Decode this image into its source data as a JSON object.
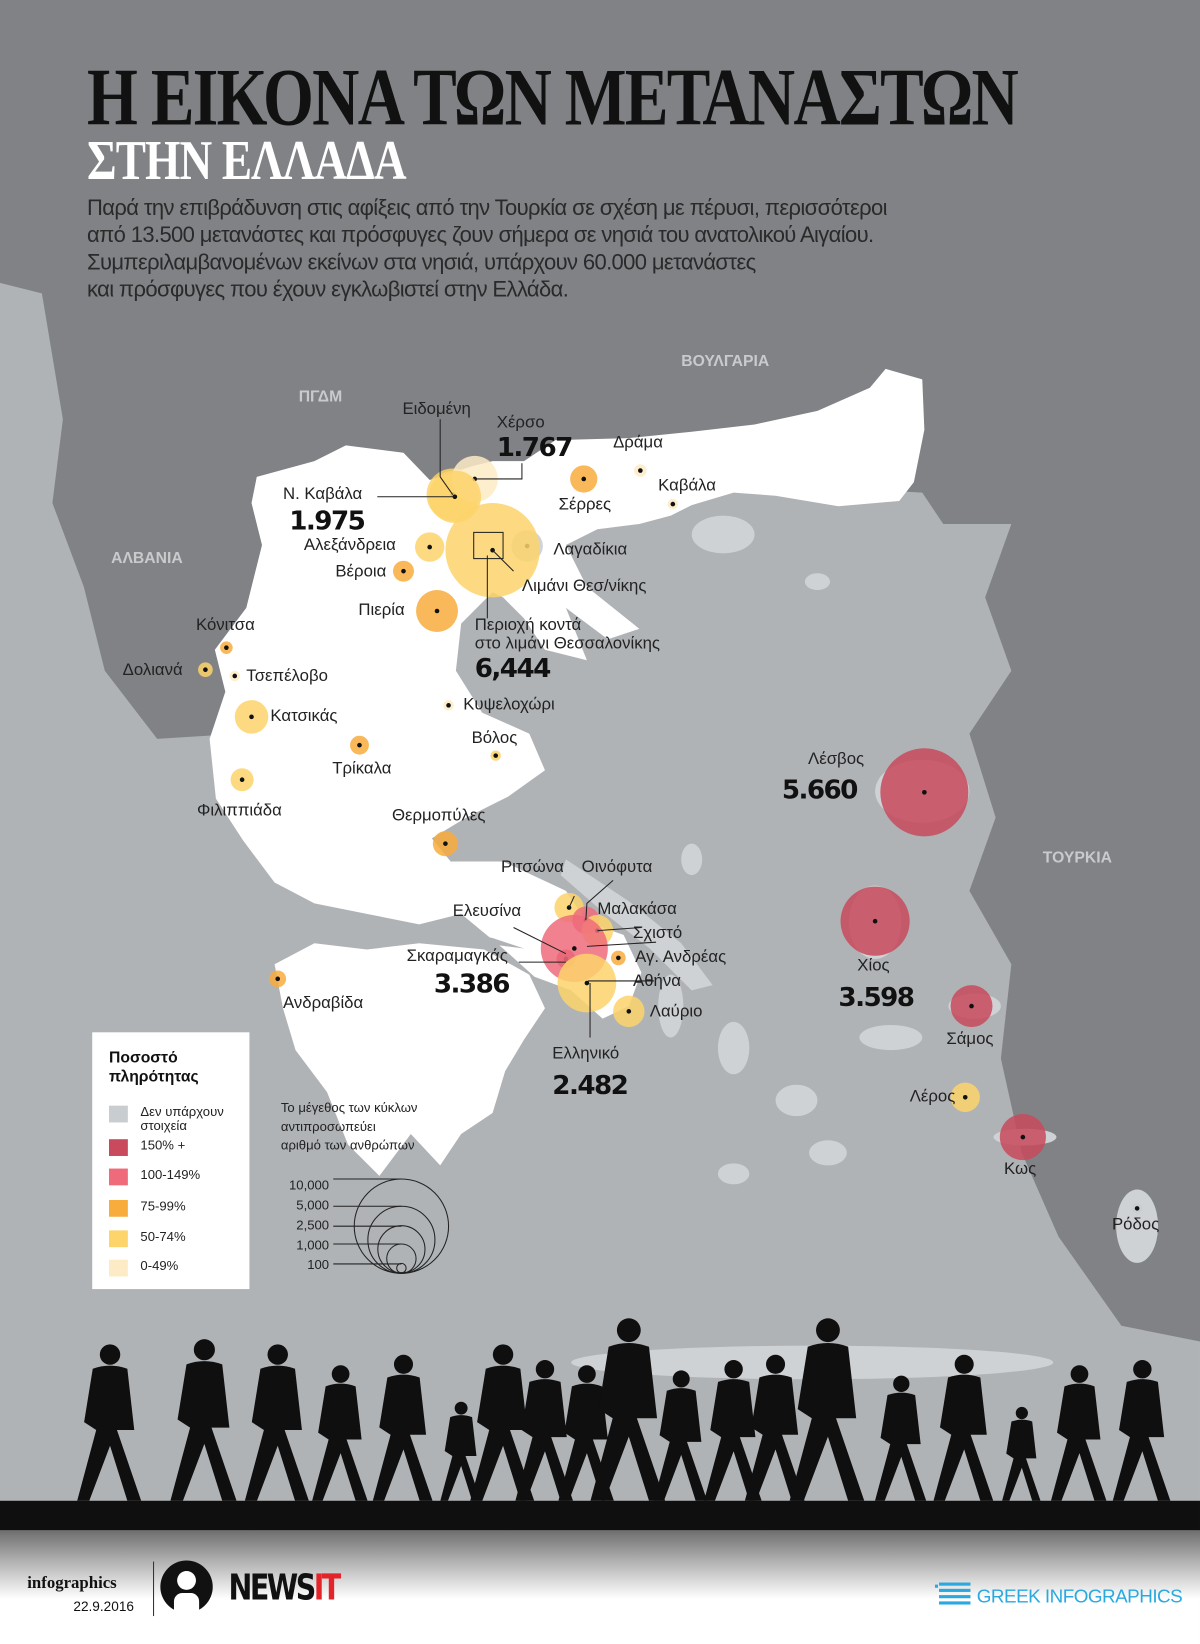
{
  "header": {
    "title": "Η ΕΙΚΟΝΑ ΤΩΝ ΜΕΤΑΝΑΣΤΩΝ",
    "subtitle": "ΣΤΗΝ ΕΛΛΑΔΑ",
    "intro_lines": [
      "Παρά την επιβράδυνση στις αφίξεις από την Τουρκία σε σχέση με πέρυσι, περισσότεροι",
      "από 13.500 μετανάστες και πρόσφυγες ζουν σήμερα σε νησιά του ανατολικού Αιγαίου.",
      "Συμπεριλαμβανομένων εκείνων στα νησιά, υπάρχουν 60.000 μετανάστες",
      "και πρόσφυγες που έχουν εγκλωβιστεί στην Ελλάδα."
    ]
  },
  "countries": [
    "ΒΟΥΛΓΑΡΙΑ",
    "ΠΓΔΜ",
    "ΑΛΒΑΝΙΑ",
    "ΤΟΥΡΚΙΑ"
  ],
  "colors": {
    "no_data": "#c9cdd0",
    "c150": "#c84a5c",
    "c100": "#ef6b7b",
    "c75": "#f8ac3c",
    "c50": "#fdd46b",
    "c0": "#fdebc6",
    "sea": "#b0b3b6",
    "neighbor_land": "#808285",
    "greece": "#ffffff"
  },
  "locations": [
    {
      "name": "Ειδομένη",
      "category": "c50"
    },
    {
      "name": "Χέρσο",
      "value": "1.767",
      "category": "c0"
    },
    {
      "name": "Ν. Καβάλα",
      "value": "1.975",
      "category": "c50"
    },
    {
      "name": "Αλεξάνδρεια",
      "category": "c50"
    },
    {
      "name": "Βέροια",
      "category": "c75"
    },
    {
      "name": "Πιερία",
      "category": "c75"
    },
    {
      "name": "Λαγαδίκια",
      "category": "no_data"
    },
    {
      "name": "Λιμάνι Θεσ/νίκης",
      "category": "c50"
    },
    {
      "name": "Περιοχή κοντά",
      "name2": "στο λιμάνι Θεσσαλονίκης",
      "value": "6,444",
      "category": "c50"
    },
    {
      "name": "Σέρρες",
      "category": "c75"
    },
    {
      "name": "Δράμα",
      "category": "c0"
    },
    {
      "name": "Καβάλα",
      "category": "c0"
    },
    {
      "name": "Κόνιτσα",
      "category": "c75"
    },
    {
      "name": "Δολιανά",
      "category": "c50"
    },
    {
      "name": "Τσεπέλοβο",
      "category": "c0"
    },
    {
      "name": "Κατσικάς",
      "category": "c50"
    },
    {
      "name": "Κυψελοχώρι",
      "category": "c0"
    },
    {
      "name": "Βόλος",
      "category": "c50"
    },
    {
      "name": "Τρίκαλα",
      "category": "c75"
    },
    {
      "name": "Φιλιππιάδα",
      "category": "c50"
    },
    {
      "name": "Θερμοπύλες",
      "category": "c75"
    },
    {
      "name": "Ριτσώνα",
      "category": "c50"
    },
    {
      "name": "Οινόφυτα",
      "category": "c100"
    },
    {
      "name": "Ελευσίνα",
      "category": "c150"
    },
    {
      "name": "Μαλακάσα",
      "category": "c50"
    },
    {
      "name": "Σχιστό",
      "category": "c100"
    },
    {
      "name": "Σκαραμαγκάς",
      "value": "3.386",
      "category": "c100"
    },
    {
      "name": "Αγ. Ανδρέας",
      "category": "c75"
    },
    {
      "name": "Αθήνα",
      "category": "c50"
    },
    {
      "name": "Λαύριο",
      "category": "c50"
    },
    {
      "name": "Ελληνικό",
      "value": "2.482",
      "category": "c50"
    },
    {
      "name": "Ανδραβίδα",
      "category": "c75"
    },
    {
      "name": "Λέσβος",
      "value": "5.660",
      "category": "c150"
    },
    {
      "name": "Χίος",
      "value": "3.598",
      "category": "c150"
    },
    {
      "name": "Σάμος",
      "category": "c150"
    },
    {
      "name": "Λέρος",
      "category": "c50"
    },
    {
      "name": "Κως",
      "category": "c150"
    },
    {
      "name": "Ρόδος",
      "category": "no_data"
    }
  ],
  "legend": {
    "title_line1": "Ποσοστό",
    "title_line2": "πληρότητας",
    "items": [
      {
        "key": "no_data",
        "label1": "Δεν υπάρχουν",
        "label2": "στοιχεία"
      },
      {
        "key": "c150",
        "label1": "150% +"
      },
      {
        "key": "c100",
        "label1": "100-149%"
      },
      {
        "key": "c75",
        "label1": "75-99%"
      },
      {
        "key": "c50",
        "label1": "50-74%"
      },
      {
        "key": "c0",
        "label1": "0-49%"
      }
    ],
    "size_caption": [
      "Το μέγεθος των κύκλων",
      "αντιπροσωπεύει",
      "αριθμό των ανθρώπων"
    ],
    "size_values": [
      "10,000",
      "5,000",
      "2,500",
      "1,000",
      "100"
    ]
  },
  "footer": {
    "infographics": "infographics",
    "date": "22.9.2016",
    "brand_a": "NEWS",
    "brand_b": "IT",
    "partner": "GREEK INFOGRAPHICS"
  }
}
